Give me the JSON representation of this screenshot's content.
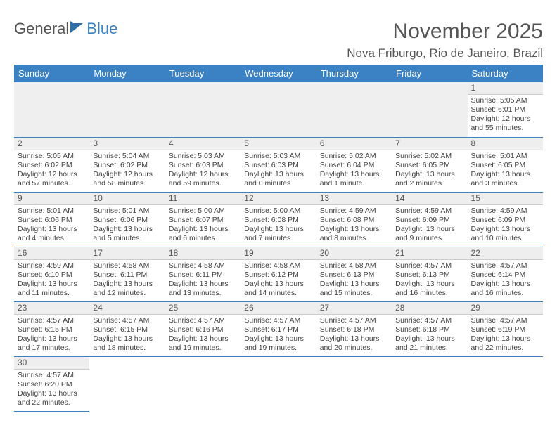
{
  "logo": {
    "word1": "General",
    "word2": "Blue"
  },
  "title": "November 2025",
  "location": "Nova Friburgo, Rio de Janeiro, Brazil",
  "colors": {
    "header_bg": "#3b82c4",
    "header_text": "#ffffff",
    "daynum_bg": "#eeeeee",
    "cell_border": "#3b82c4",
    "body_text": "#444444",
    "title_text": "#555555",
    "page_bg": "#ffffff"
  },
  "typography": {
    "month_title_fontsize": 30,
    "location_fontsize": 17,
    "weekday_fontsize": 13,
    "daynum_fontsize": 12,
    "cell_fontsize": 10.5
  },
  "weekdays": [
    "Sunday",
    "Monday",
    "Tuesday",
    "Wednesday",
    "Thursday",
    "Friday",
    "Saturday"
  ],
  "days": {
    "1": {
      "sunrise": "Sunrise: 5:05 AM",
      "sunset": "Sunset: 6:01 PM",
      "daylight": "Daylight: 12 hours and 55 minutes."
    },
    "2": {
      "sunrise": "Sunrise: 5:05 AM",
      "sunset": "Sunset: 6:02 PM",
      "daylight": "Daylight: 12 hours and 57 minutes."
    },
    "3": {
      "sunrise": "Sunrise: 5:04 AM",
      "sunset": "Sunset: 6:02 PM",
      "daylight": "Daylight: 12 hours and 58 minutes."
    },
    "4": {
      "sunrise": "Sunrise: 5:03 AM",
      "sunset": "Sunset: 6:03 PM",
      "daylight": "Daylight: 12 hours and 59 minutes."
    },
    "5": {
      "sunrise": "Sunrise: 5:03 AM",
      "sunset": "Sunset: 6:03 PM",
      "daylight": "Daylight: 13 hours and 0 minutes."
    },
    "6": {
      "sunrise": "Sunrise: 5:02 AM",
      "sunset": "Sunset: 6:04 PM",
      "daylight": "Daylight: 13 hours and 1 minute."
    },
    "7": {
      "sunrise": "Sunrise: 5:02 AM",
      "sunset": "Sunset: 6:05 PM",
      "daylight": "Daylight: 13 hours and 2 minutes."
    },
    "8": {
      "sunrise": "Sunrise: 5:01 AM",
      "sunset": "Sunset: 6:05 PM",
      "daylight": "Daylight: 13 hours and 3 minutes."
    },
    "9": {
      "sunrise": "Sunrise: 5:01 AM",
      "sunset": "Sunset: 6:06 PM",
      "daylight": "Daylight: 13 hours and 4 minutes."
    },
    "10": {
      "sunrise": "Sunrise: 5:01 AM",
      "sunset": "Sunset: 6:06 PM",
      "daylight": "Daylight: 13 hours and 5 minutes."
    },
    "11": {
      "sunrise": "Sunrise: 5:00 AM",
      "sunset": "Sunset: 6:07 PM",
      "daylight": "Daylight: 13 hours and 6 minutes."
    },
    "12": {
      "sunrise": "Sunrise: 5:00 AM",
      "sunset": "Sunset: 6:08 PM",
      "daylight": "Daylight: 13 hours and 7 minutes."
    },
    "13": {
      "sunrise": "Sunrise: 4:59 AM",
      "sunset": "Sunset: 6:08 PM",
      "daylight": "Daylight: 13 hours and 8 minutes."
    },
    "14": {
      "sunrise": "Sunrise: 4:59 AM",
      "sunset": "Sunset: 6:09 PM",
      "daylight": "Daylight: 13 hours and 9 minutes."
    },
    "15": {
      "sunrise": "Sunrise: 4:59 AM",
      "sunset": "Sunset: 6:09 PM",
      "daylight": "Daylight: 13 hours and 10 minutes."
    },
    "16": {
      "sunrise": "Sunrise: 4:59 AM",
      "sunset": "Sunset: 6:10 PM",
      "daylight": "Daylight: 13 hours and 11 minutes."
    },
    "17": {
      "sunrise": "Sunrise: 4:58 AM",
      "sunset": "Sunset: 6:11 PM",
      "daylight": "Daylight: 13 hours and 12 minutes."
    },
    "18": {
      "sunrise": "Sunrise: 4:58 AM",
      "sunset": "Sunset: 6:11 PM",
      "daylight": "Daylight: 13 hours and 13 minutes."
    },
    "19": {
      "sunrise": "Sunrise: 4:58 AM",
      "sunset": "Sunset: 6:12 PM",
      "daylight": "Daylight: 13 hours and 14 minutes."
    },
    "20": {
      "sunrise": "Sunrise: 4:58 AM",
      "sunset": "Sunset: 6:13 PM",
      "daylight": "Daylight: 13 hours and 15 minutes."
    },
    "21": {
      "sunrise": "Sunrise: 4:57 AM",
      "sunset": "Sunset: 6:13 PM",
      "daylight": "Daylight: 13 hours and 16 minutes."
    },
    "22": {
      "sunrise": "Sunrise: 4:57 AM",
      "sunset": "Sunset: 6:14 PM",
      "daylight": "Daylight: 13 hours and 16 minutes."
    },
    "23": {
      "sunrise": "Sunrise: 4:57 AM",
      "sunset": "Sunset: 6:15 PM",
      "daylight": "Daylight: 13 hours and 17 minutes."
    },
    "24": {
      "sunrise": "Sunrise: 4:57 AM",
      "sunset": "Sunset: 6:15 PM",
      "daylight": "Daylight: 13 hours and 18 minutes."
    },
    "25": {
      "sunrise": "Sunrise: 4:57 AM",
      "sunset": "Sunset: 6:16 PM",
      "daylight": "Daylight: 13 hours and 19 minutes."
    },
    "26": {
      "sunrise": "Sunrise: 4:57 AM",
      "sunset": "Sunset: 6:17 PM",
      "daylight": "Daylight: 13 hours and 19 minutes."
    },
    "27": {
      "sunrise": "Sunrise: 4:57 AM",
      "sunset": "Sunset: 6:18 PM",
      "daylight": "Daylight: 13 hours and 20 minutes."
    },
    "28": {
      "sunrise": "Sunrise: 4:57 AM",
      "sunset": "Sunset: 6:18 PM",
      "daylight": "Daylight: 13 hours and 21 minutes."
    },
    "29": {
      "sunrise": "Sunrise: 4:57 AM",
      "sunset": "Sunset: 6:19 PM",
      "daylight": "Daylight: 13 hours and 22 minutes."
    },
    "30": {
      "sunrise": "Sunrise: 4:57 AM",
      "sunset": "Sunset: 6:20 PM",
      "daylight": "Daylight: 13 hours and 22 minutes."
    }
  },
  "layout": {
    "first_weekday_index": 6,
    "num_days": 30,
    "columns": 7
  }
}
